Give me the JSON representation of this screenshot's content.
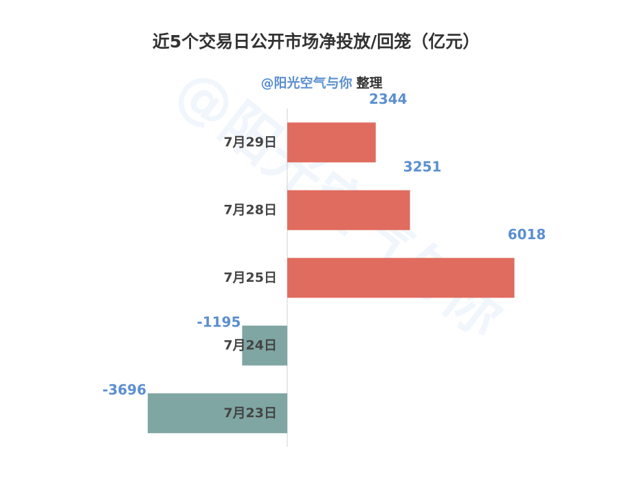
{
  "chart_data": {
    "type": "hbar",
    "title": "近5个交易日公开市场净投放/回笼（亿元）",
    "subtitle_author": "@阳光空气与你",
    "subtitle_note": "整理",
    "watermark": "@阳光空气与你",
    "categories": [
      "7月29日",
      "7月28日",
      "7月25日",
      "7月24日",
      "7月23日"
    ],
    "values": [
      2344,
      3251,
      6018,
      -1195,
      -3696
    ],
    "color_positive": "#e06b5f",
    "color_negative": "#7fa6a3",
    "label_color": "#5b8fd0"
  }
}
